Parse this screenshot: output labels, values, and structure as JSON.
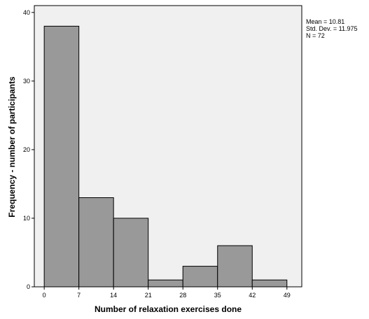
{
  "chart_data": {
    "type": "bar",
    "subtype": "histogram",
    "bins": [
      {
        "start": 0,
        "end": 7,
        "count": 38
      },
      {
        "start": 7,
        "end": 14,
        "count": 13
      },
      {
        "start": 14,
        "end": 21,
        "count": 10
      },
      {
        "start": 21,
        "end": 28,
        "count": 1
      },
      {
        "start": 28,
        "end": 35,
        "count": 3
      },
      {
        "start": 35,
        "end": 42,
        "count": 6
      },
      {
        "start": 42,
        "end": 49,
        "count": 1
      }
    ],
    "x_ticks": [
      "0",
      "7",
      "14",
      "21",
      "28",
      "35",
      "42",
      "49"
    ],
    "y_ticks": [
      "0",
      "10",
      "20",
      "30",
      "40"
    ],
    "xlabel": "Number of relaxation exercises done",
    "ylabel": "Frequency - number of participants",
    "xlim": [
      -2,
      52
    ],
    "ylim": [
      0,
      41
    ],
    "grid": false,
    "legend": "none",
    "stats": [
      "Mean = 10.81",
      "Std. Dev. = 11.975",
      "N = 72"
    ],
    "colors": {
      "bar_fill": "#999999",
      "bar_stroke": "#000000",
      "plot_background": "#f0f0f0",
      "axis": "#000000"
    }
  }
}
